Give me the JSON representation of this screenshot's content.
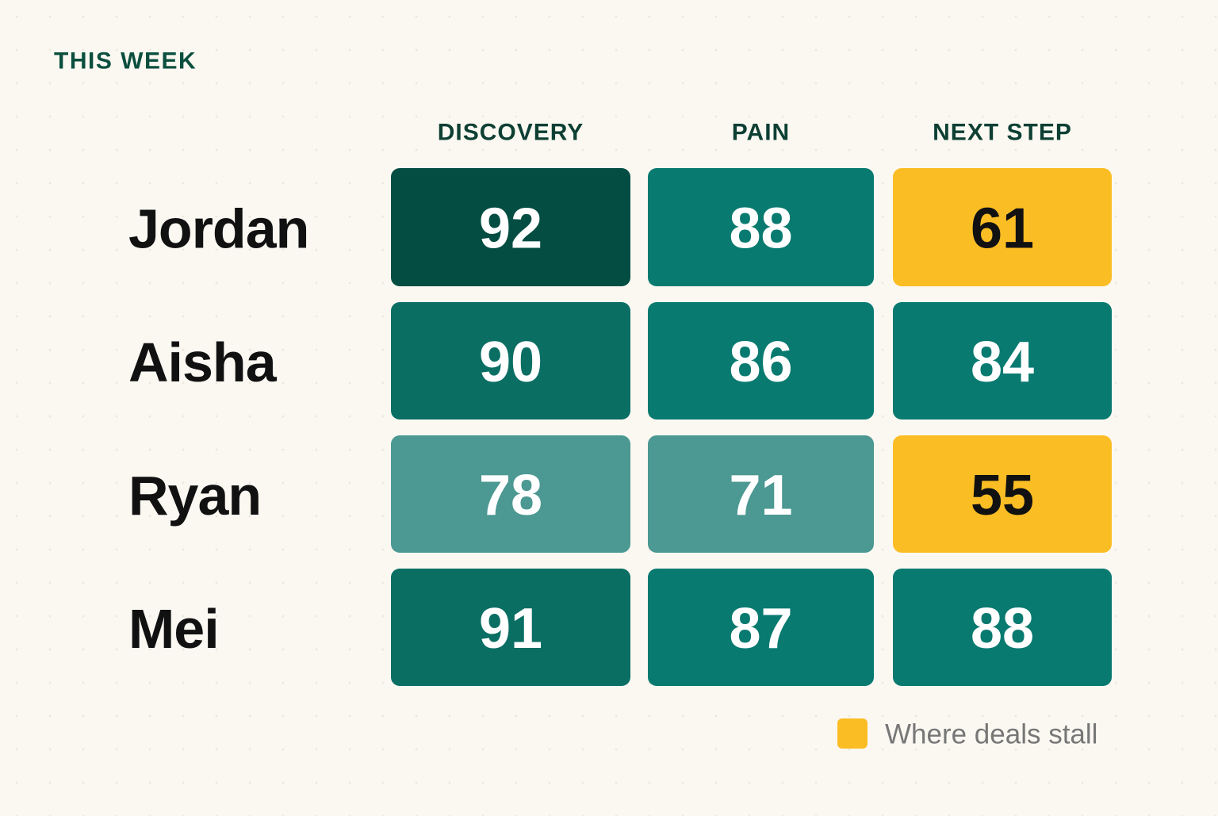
{
  "chart_data": {
    "type": "heatmap",
    "title": "THIS WEEK",
    "x": [
      "DISCOVERY",
      "PAIN",
      "NEXT STEP"
    ],
    "y": [
      "Jordan",
      "Aisha",
      "Ryan",
      "Mei"
    ],
    "values": [
      [
        92,
        88,
        61
      ],
      [
        90,
        86,
        84
      ],
      [
        78,
        71,
        55
      ],
      [
        91,
        87,
        88
      ]
    ],
    "colors": [
      [
        "#034d43",
        "#087a70",
        "#fbbd24"
      ],
      [
        "#0a6e63",
        "#087a70",
        "#087a70"
      ],
      [
        "#4c9892",
        "#4c9892",
        "#fbbd24"
      ],
      [
        "#0a6e63",
        "#087a70",
        "#087a70"
      ]
    ],
    "legend": {
      "label": "Where deals stall",
      "color": "#fbbd24"
    }
  }
}
